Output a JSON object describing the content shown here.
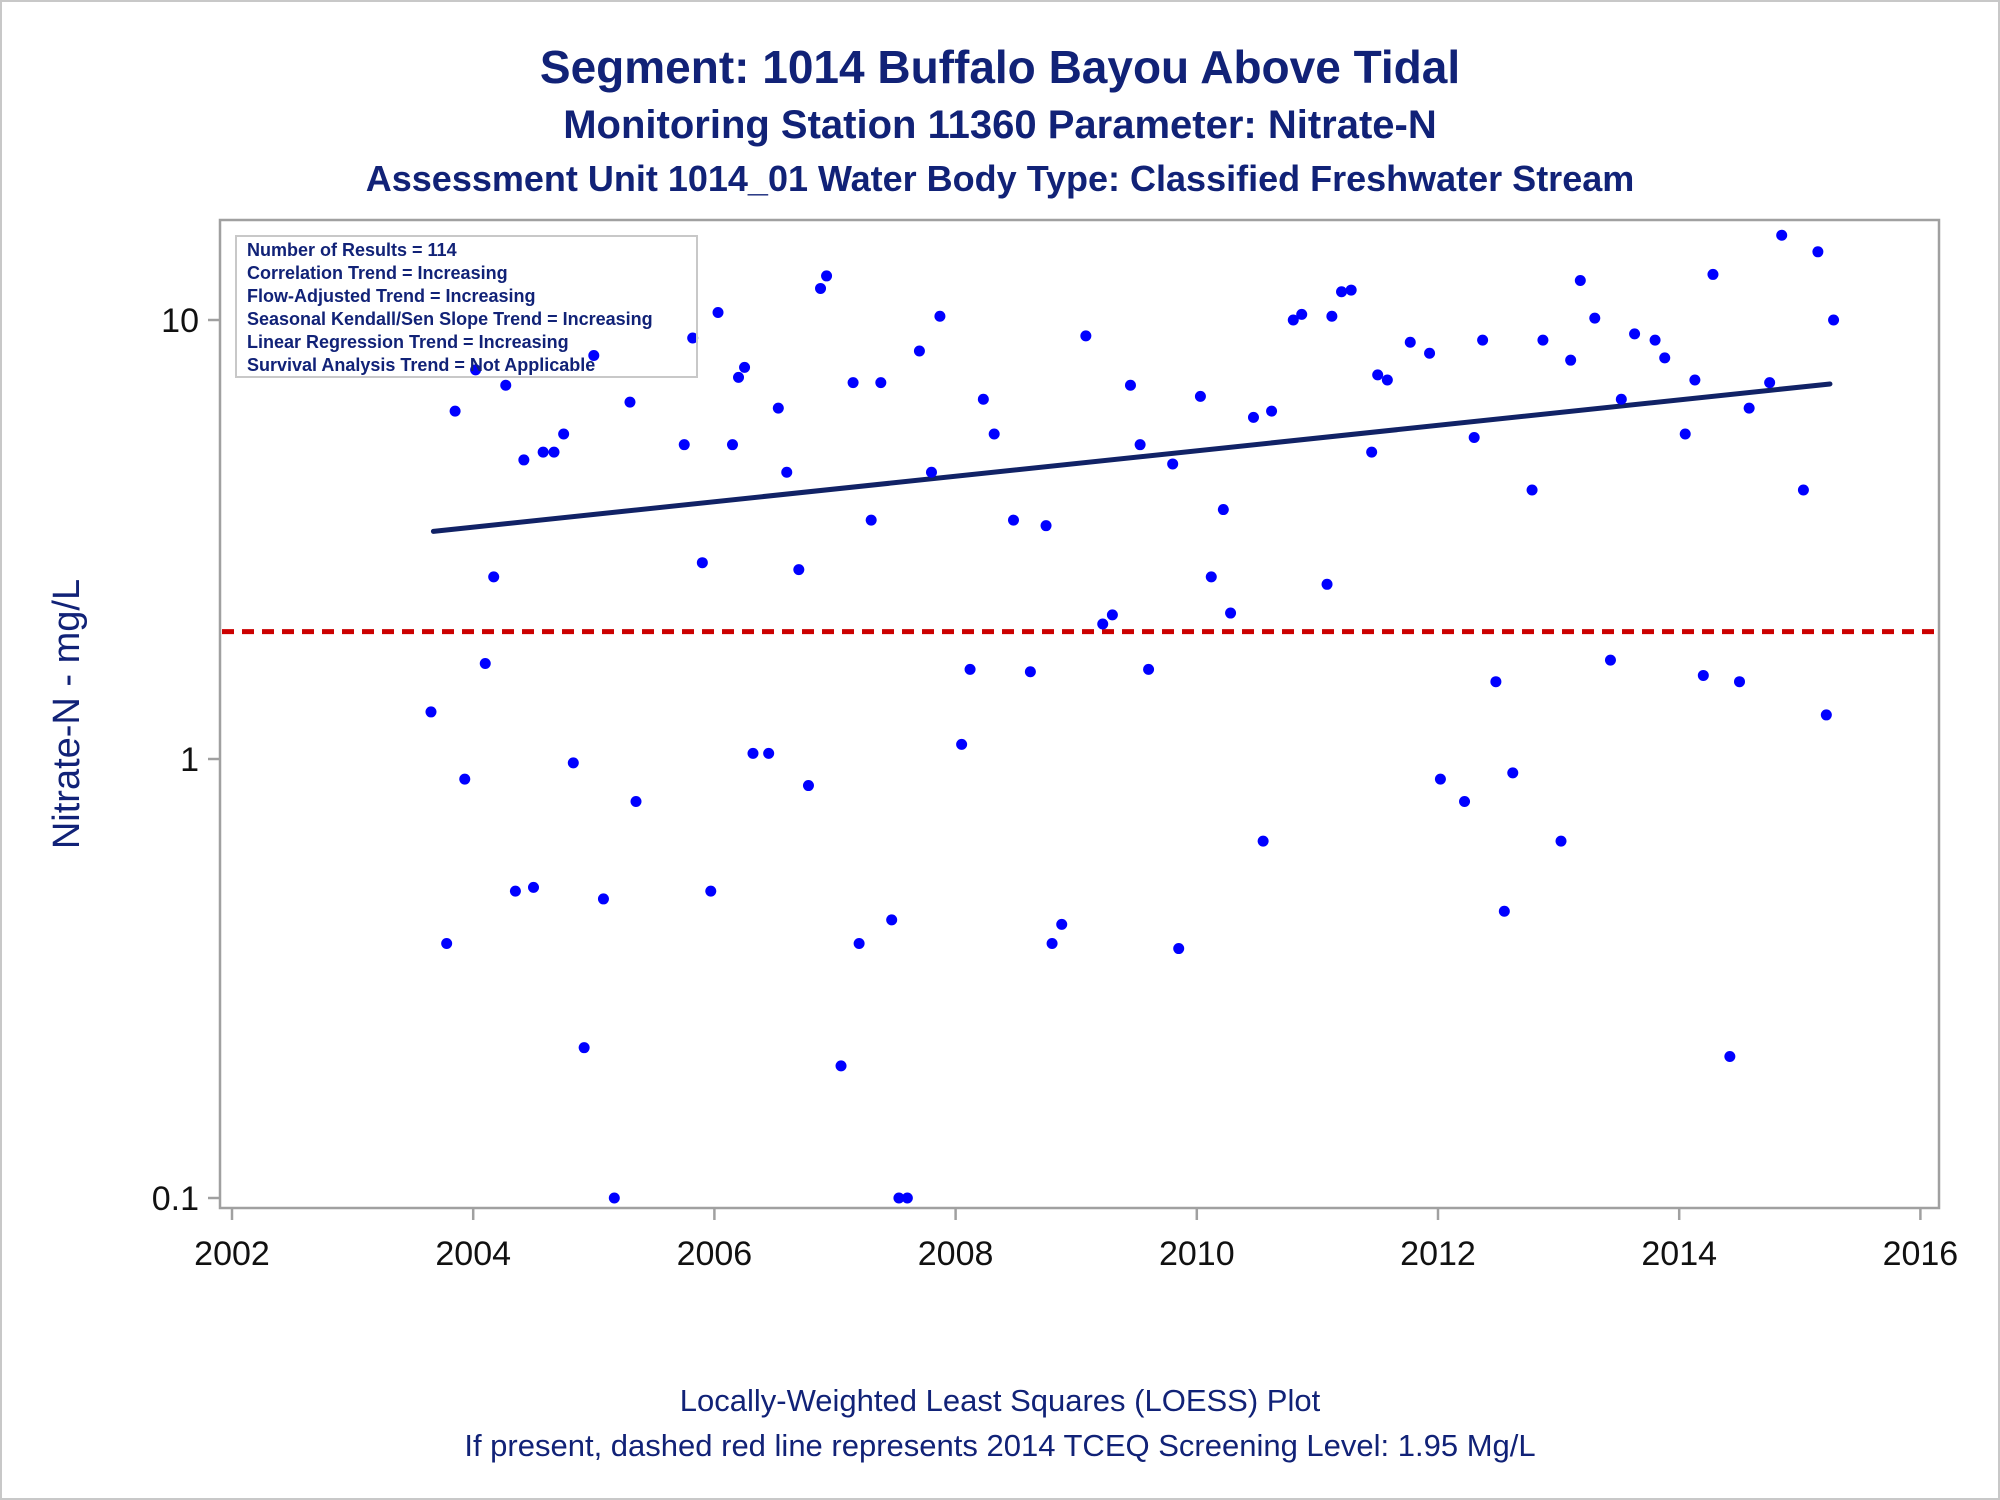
{
  "chart_data": {
    "type": "scatter",
    "title": "Segment: 1014  Buffalo Bayou Above Tidal",
    "subtitle": "Monitoring Station 11360 Parameter: Nitrate-N",
    "subtitle2": "Assessment Unit 1014_01   Water Body Type: Classified Freshwater Stream",
    "ylabel": "Nitrate-N - mg/L",
    "xlabel": "",
    "y_scale": "log",
    "xlim": [
      2002,
      2016
    ],
    "ylim": [
      0.1,
      16.8
    ],
    "x_ticks": [
      2002,
      2004,
      2006,
      2008,
      2010,
      2012,
      2014,
      2016
    ],
    "y_ticks": [
      {
        "value": 0.1,
        "label": "0.1"
      },
      {
        "value": 1,
        "label": "1"
      },
      {
        "value": 10,
        "label": "10"
      }
    ],
    "grid": false,
    "legend": "none",
    "stats_box": {
      "position": "top-left",
      "lines": [
        "Number of Results = 114",
        "Correlation Trend = Increasing",
        "Flow-Adjusted Trend = Increasing",
        "Seasonal Kendall/Sen Slope Trend = Increasing",
        "Linear Regression Trend = Increasing",
        "Survival Analysis Trend = Not Applicable"
      ]
    },
    "trend_line": {
      "x": [
        2003.67,
        2015.25
      ],
      "y": [
        3.3,
        7.15
      ],
      "color": "#112266"
    },
    "screening_level": {
      "value": 1.95,
      "color": "#cc0000",
      "style": "dashed"
    },
    "point_color": "#0000ff",
    "series": [
      {
        "points": [
          [
            2003.65,
            1.28
          ],
          [
            2003.78,
            0.38
          ],
          [
            2003.85,
            6.2
          ],
          [
            2003.93,
            0.9
          ],
          [
            2004.02,
            7.7
          ],
          [
            2004.1,
            1.65
          ],
          [
            2004.17,
            2.6
          ],
          [
            2004.27,
            7.1
          ],
          [
            2004.35,
            0.5
          ],
          [
            2004.42,
            4.8
          ],
          [
            2004.5,
            0.51
          ],
          [
            2004.58,
            5.0
          ],
          [
            2004.67,
            5.0
          ],
          [
            2004.75,
            5.5
          ],
          [
            2004.83,
            0.98
          ],
          [
            2004.92,
            0.22
          ],
          [
            2005.0,
            8.3
          ],
          [
            2005.08,
            0.48
          ],
          [
            2005.17,
            0.1
          ],
          [
            2005.3,
            6.5
          ],
          [
            2005.35,
            0.8
          ],
          [
            2005.75,
            5.2
          ],
          [
            2005.82,
            9.1
          ],
          [
            2005.9,
            2.8
          ],
          [
            2005.97,
            0.5
          ],
          [
            2006.03,
            10.4
          ],
          [
            2006.15,
            5.2
          ],
          [
            2006.2,
            7.4
          ],
          [
            2006.25,
            7.8
          ],
          [
            2006.32,
            1.03
          ],
          [
            2006.45,
            1.03
          ],
          [
            2006.53,
            6.3
          ],
          [
            2006.6,
            4.5
          ],
          [
            2006.7,
            2.7
          ],
          [
            2006.78,
            0.87
          ],
          [
            2006.88,
            11.8
          ],
          [
            2006.93,
            12.6
          ],
          [
            2007.05,
            0.2
          ],
          [
            2007.15,
            7.2
          ],
          [
            2007.2,
            0.38
          ],
          [
            2007.3,
            3.5
          ],
          [
            2007.38,
            7.2
          ],
          [
            2007.47,
            0.43
          ],
          [
            2007.53,
            0.1
          ],
          [
            2007.6,
            0.1
          ],
          [
            2007.7,
            8.5
          ],
          [
            2007.8,
            4.5
          ],
          [
            2007.87,
            10.2
          ],
          [
            2008.05,
            1.08
          ],
          [
            2008.12,
            1.6
          ],
          [
            2008.23,
            6.6
          ],
          [
            2008.32,
            5.5
          ],
          [
            2008.48,
            3.5
          ],
          [
            2008.62,
            1.58
          ],
          [
            2008.75,
            3.4
          ],
          [
            2008.8,
            0.38
          ],
          [
            2008.88,
            0.42
          ],
          [
            2009.08,
            9.2
          ],
          [
            2009.22,
            2.03
          ],
          [
            2009.3,
            2.13
          ],
          [
            2009.45,
            7.1
          ],
          [
            2009.53,
            5.2
          ],
          [
            2009.6,
            1.6
          ],
          [
            2009.8,
            4.7
          ],
          [
            2009.85,
            0.37
          ],
          [
            2010.03,
            6.7
          ],
          [
            2010.12,
            2.6
          ],
          [
            2010.22,
            3.7
          ],
          [
            2010.28,
            2.15
          ],
          [
            2010.47,
            6.0
          ],
          [
            2010.55,
            0.65
          ],
          [
            2010.62,
            6.2
          ],
          [
            2010.8,
            10.0
          ],
          [
            2010.87,
            10.3
          ],
          [
            2011.08,
            2.5
          ],
          [
            2011.12,
            10.2
          ],
          [
            2011.2,
            11.6
          ],
          [
            2011.28,
            11.7
          ],
          [
            2011.45,
            5.0
          ],
          [
            2011.5,
            7.5
          ],
          [
            2011.58,
            7.3
          ],
          [
            2011.77,
            8.9
          ],
          [
            2011.93,
            8.4
          ],
          [
            2012.02,
            0.9
          ],
          [
            2012.22,
            0.8
          ],
          [
            2012.3,
            5.4
          ],
          [
            2012.37,
            9.0
          ],
          [
            2012.48,
            1.5
          ],
          [
            2012.55,
            0.45
          ],
          [
            2012.62,
            0.93
          ],
          [
            2012.78,
            4.1
          ],
          [
            2012.87,
            9.0
          ],
          [
            2013.02,
            0.65
          ],
          [
            2013.1,
            8.1
          ],
          [
            2013.18,
            12.3
          ],
          [
            2013.3,
            10.1
          ],
          [
            2013.43,
            1.68
          ],
          [
            2013.52,
            6.6
          ],
          [
            2013.63,
            9.3
          ],
          [
            2013.8,
            9.0
          ],
          [
            2013.88,
            8.2
          ],
          [
            2014.05,
            5.5
          ],
          [
            2014.13,
            7.3
          ],
          [
            2014.2,
            1.55
          ],
          [
            2014.28,
            12.7
          ],
          [
            2014.42,
            0.21
          ],
          [
            2014.5,
            1.5
          ],
          [
            2014.58,
            6.3
          ],
          [
            2014.75,
            7.2
          ],
          [
            2014.85,
            15.6
          ],
          [
            2015.03,
            4.1
          ],
          [
            2015.15,
            14.3
          ],
          [
            2015.22,
            1.26
          ],
          [
            2015.28,
            10.0
          ]
        ]
      }
    ]
  },
  "footer": {
    "line1": "Locally-Weighted Least Squares (LOESS) Plot",
    "line2": "If present, dashed red line represents 2014 TCEQ Screening Level: 1.95 Mg/L"
  }
}
